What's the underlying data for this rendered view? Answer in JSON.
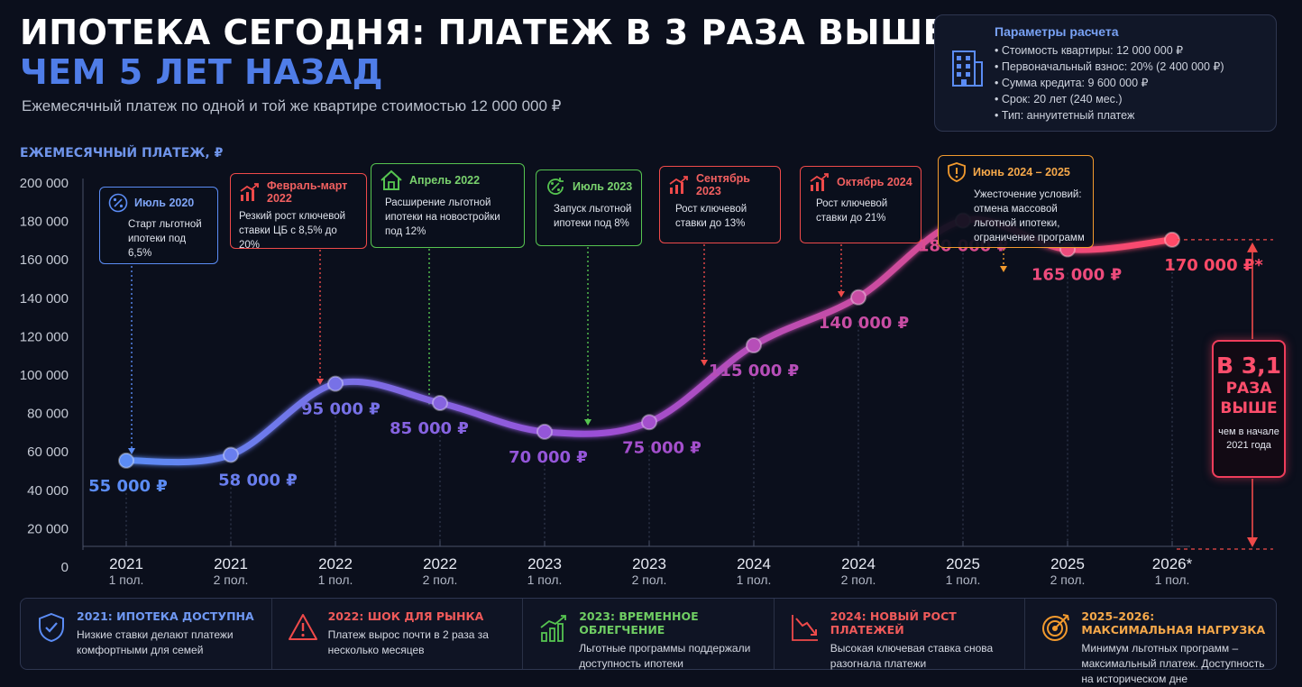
{
  "header": {
    "title_line1": "ИПОТЕКА СЕГОДНЯ: ПЛАТЕЖ В 3 РАЗА ВЫШЕ,",
    "title_line2": "ЧЕМ 5 ЛЕТ НАЗАД",
    "subtitle": "Ежемесячный платеж по одной и той же квартире стоимостью 12 000 000 ₽"
  },
  "params": {
    "title": "Параметры расчета",
    "icon": "building-icon",
    "items": [
      "Стоимость квартиры: 12 000 000 ₽",
      "Первоначальный взнос: 20% (2 400 000 ₽)",
      "Сумма кредита: 9 600 000 ₽",
      "Срок: 20 лет (240 мес.)",
      "Тип: аннуитетный платеж"
    ]
  },
  "colors": {
    "background": "#0b0f1c",
    "line_start": "#5b8cf5",
    "line_mid": "#9b4fd6",
    "line_end": "#ff4a68",
    "blue": "#5b8cf5",
    "red": "#ef4a4a",
    "green": "#56c450",
    "orange": "#f29a2e"
  },
  "chart_data": {
    "type": "line",
    "ylabel": "ЕЖЕМЕСЯЧНЫЙ ПЛАТЕЖ, ₽",
    "xlabel": "",
    "ylim": [
      0,
      200000
    ],
    "yticks": [
      0,
      20000,
      40000,
      60000,
      80000,
      100000,
      120000,
      140000,
      160000,
      180000,
      200000
    ],
    "ytick_labels": [
      "0",
      "20 000",
      "40 000",
      "60 000",
      "80 000",
      "100 000",
      "120 000",
      "140 000",
      "160 000",
      "180 000",
      "200 000"
    ],
    "categories": [
      {
        "year": "2021",
        "half": "1 пол."
      },
      {
        "year": "2021",
        "half": "2 пол."
      },
      {
        "year": "2022",
        "half": "1 пол."
      },
      {
        "year": "2022",
        "half": "2 пол."
      },
      {
        "year": "2023",
        "half": "1 пол."
      },
      {
        "year": "2023",
        "half": "2 пол."
      },
      {
        "year": "2024",
        "half": "1 пол."
      },
      {
        "year": "2024",
        "half": "2 пол."
      },
      {
        "year": "2025",
        "half": "1 пол."
      },
      {
        "year": "2025",
        "half": "2 пол."
      },
      {
        "year": "2026*",
        "half": "1 пол."
      }
    ],
    "series": [
      {
        "values": [
          55000,
          58000,
          95000,
          85000,
          70000,
          75000,
          115000,
          140000,
          180000,
          165000,
          170000
        ]
      }
    ],
    "data_labels": [
      "55 000 ₽",
      "58 000 ₽",
      "95 000 ₽",
      "85 000 ₽",
      "70 000 ₽",
      "75 000 ₽",
      "115 000 ₽",
      "140 000 ₽",
      "180 000 ₽",
      "165 000 ₽",
      "170 000 ₽*"
    ],
    "grid": false
  },
  "events": [
    {
      "date": "Июль 2020",
      "text": "Старт льготной ипотеки под 6,5%",
      "color": "#5b8cf5",
      "icon": "percent-icon"
    },
    {
      "date": "Февраль-март 2022",
      "text": "Резкий рост ключевой ставки ЦБ с 8,5% до 20%",
      "color": "#ef4a4a",
      "icon": "trend-up-icon"
    },
    {
      "date": "Апрель 2022",
      "text": "Расширение льготной ипотеки на новостройки под 12%",
      "color": "#56c450",
      "icon": "house-icon"
    },
    {
      "date": "Июль 2023",
      "text": "Запуск льготной ипотеки под 8%",
      "color": "#56c450",
      "icon": "percent-cycle-icon"
    },
    {
      "date": "Сентябрь 2023",
      "text": "Рост ключевой ставки до 13%",
      "color": "#ef4a4a",
      "icon": "trend-up-icon"
    },
    {
      "date": "Октябрь 2024",
      "text": "Рост ключевой ставки до 21%",
      "color": "#ef4a4a",
      "icon": "trend-up-icon"
    },
    {
      "date": "Июнь 2024 – 2025",
      "text": "Ужесточение условий: отмена массовой льготной ипотеки, ограничение программ",
      "color": "#f29a2e",
      "icon": "shield-alert-icon"
    }
  ],
  "multiplier": {
    "big": "В 3,1",
    "line1": "РАЗА",
    "line2": "ВЫШЕ",
    "note": "чем в начале 2021 года"
  },
  "summary": [
    {
      "title": "2021: ИПОТЕКА ДОСТУПНА",
      "text": "Низкие ставки делают платежи комфортными для семей",
      "color": "#5b8cf5",
      "icon": "shield-check-icon"
    },
    {
      "title": "2022: ШОК ДЛЯ РЫНКА",
      "text": "Платеж вырос почти в 2 раза за несколько месяцев",
      "color": "#ef4a4a",
      "icon": "warning-icon"
    },
    {
      "title": "2023: ВРЕМЕННОЕ ОБЛЕГЧЕНИЕ",
      "text": "Льготные программы поддержали доступность ипотеки",
      "color": "#56c450",
      "icon": "bar-trend-icon"
    },
    {
      "title": "2024: НОВЫЙ РОСТ ПЛАТЕЖЕЙ",
      "text": "Высокая ключевая ставка снова разогнала платежи",
      "color": "#ef4a4a",
      "icon": "trend-down-icon"
    },
    {
      "title": "2025–2026: МАКСИМАЛЬНАЯ НАГРУЗКА",
      "text": "Минимум льготных программ – максимальный платеж. Доступность на историческом дне",
      "color": "#f29a2e",
      "icon": "target-icon"
    }
  ]
}
